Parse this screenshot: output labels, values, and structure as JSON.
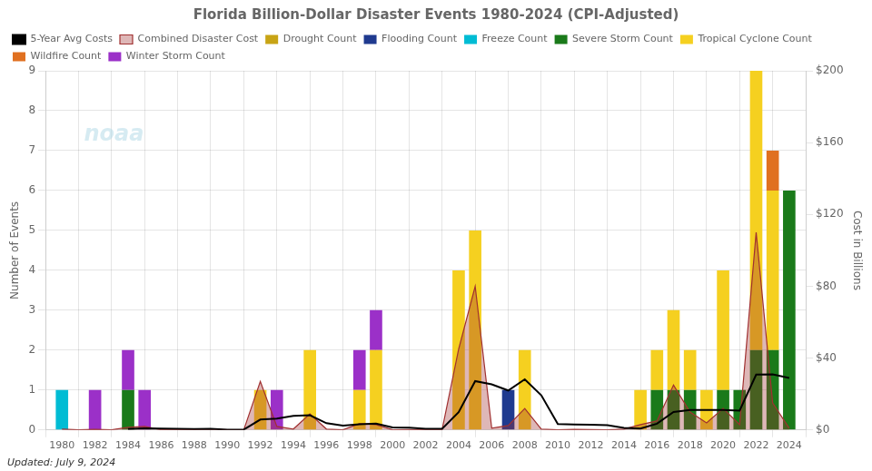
{
  "chart_data": {
    "type": "bar",
    "title": "Florida Billion-Dollar Disaster Events 1980-2024 (CPI-Adjusted)",
    "y_label": "Number of Events",
    "y2_label": "Cost in Billions",
    "annotations": [
      "Updated: July 9, 2024",
      "noaa"
    ],
    "x": [
      1980,
      1981,
      1982,
      1983,
      1984,
      1985,
      1986,
      1987,
      1988,
      1989,
      1990,
      1991,
      1992,
      1993,
      1994,
      1995,
      1996,
      1997,
      1998,
      1999,
      2000,
      2001,
      2002,
      2003,
      2004,
      2005,
      2006,
      2007,
      2008,
      2009,
      2010,
      2011,
      2012,
      2013,
      2014,
      2015,
      2016,
      2017,
      2018,
      2019,
      2020,
      2021,
      2022,
      2023,
      2024
    ],
    "xlim": [
      1979,
      2025
    ],
    "xticks": [
      1980,
      1982,
      1984,
      1986,
      1988,
      1990,
      1992,
      1994,
      1996,
      1998,
      2000,
      2002,
      2004,
      2006,
      2008,
      2010,
      2012,
      2014,
      2016,
      2018,
      2020,
      2022,
      2024
    ],
    "ylim": [
      0,
      9
    ],
    "yticks": [
      0,
      1,
      2,
      3,
      4,
      5,
      6,
      7,
      8,
      9
    ],
    "y2lim": [
      0,
      200
    ],
    "y2ticks": [
      {
        "value": 0,
        "label": "$0"
      },
      {
        "value": 40,
        "label": "$40"
      },
      {
        "value": 80,
        "label": "$80"
      },
      {
        "value": 120,
        "label": "$120"
      },
      {
        "value": 160,
        "label": "$160"
      },
      {
        "value": 200,
        "label": "$200"
      }
    ],
    "stacked": true,
    "grid": true,
    "legend": "upper left",
    "series": [
      {
        "name": "Drought Count",
        "color": "#c8a415",
        "values": [
          0,
          0,
          0,
          0,
          0,
          0,
          0,
          0,
          0,
          0,
          0,
          0,
          0,
          0,
          0,
          0,
          0,
          0,
          0,
          0,
          0,
          0,
          0,
          0,
          0,
          0,
          0,
          0,
          0,
          0,
          0,
          0,
          0,
          0,
          0,
          0,
          0,
          0,
          0,
          0,
          0,
          0,
          0,
          0,
          0
        ]
      },
      {
        "name": "Flooding Count",
        "color": "#1f3a8f",
        "values": [
          0,
          0,
          0,
          0,
          0,
          0,
          0,
          0,
          0,
          0,
          0,
          0,
          0,
          0,
          0,
          0,
          0,
          0,
          0,
          0,
          0,
          0,
          0,
          0,
          0,
          0,
          0,
          1,
          0,
          0,
          0,
          0,
          0,
          0,
          0,
          0,
          0,
          0,
          0,
          0,
          0,
          0,
          0,
          0,
          0
        ]
      },
      {
        "name": "Freeze Count",
        "color": "#00bcd4",
        "values": [
          1,
          0,
          0,
          0,
          0,
          0,
          0,
          0,
          0,
          0,
          0,
          0,
          0,
          0,
          0,
          0,
          0,
          0,
          0,
          0,
          0,
          0,
          0,
          0,
          0,
          0,
          0,
          0,
          0,
          0,
          0,
          0,
          0,
          0,
          0,
          0,
          0,
          0,
          0,
          0,
          0,
          0,
          0,
          0,
          0
        ]
      },
      {
        "name": "Severe Storm Count",
        "color": "#1a7a1a",
        "values": [
          0,
          0,
          0,
          0,
          1,
          0,
          0,
          0,
          0,
          0,
          0,
          0,
          0,
          0,
          0,
          0,
          0,
          0,
          0,
          0,
          0,
          0,
          0,
          0,
          0,
          0,
          0,
          0,
          0,
          0,
          0,
          0,
          0,
          0,
          0,
          0,
          1,
          1,
          1,
          0,
          1,
          1,
          2,
          2,
          6
        ]
      },
      {
        "name": "Tropical Cyclone Count",
        "color": "#f5d020",
        "values": [
          0,
          0,
          0,
          0,
          0,
          0,
          0,
          0,
          0,
          0,
          0,
          0,
          1,
          0,
          0,
          2,
          0,
          0,
          1,
          2,
          0,
          0,
          0,
          0,
          4,
          5,
          0,
          0,
          2,
          0,
          0,
          0,
          0,
          0,
          0,
          1,
          1,
          2,
          1,
          1,
          3,
          0,
          7,
          4,
          0
        ]
      },
      {
        "name": "Wildfire Count",
        "color": "#e07020",
        "values": [
          0,
          0,
          0,
          0,
          0,
          0,
          0,
          0,
          0,
          0,
          0,
          0,
          0,
          0,
          0,
          0,
          0,
          0,
          0,
          0,
          0,
          0,
          0,
          0,
          0,
          0,
          0,
          0,
          0,
          0,
          0,
          0,
          0,
          0,
          0,
          0,
          0,
          0,
          0,
          0,
          0,
          0,
          0,
          1,
          0
        ]
      },
      {
        "name": "Winter Storm Count",
        "color": "#9b30c8",
        "values": [
          0,
          0,
          1,
          0,
          1,
          1,
          0,
          0,
          0,
          0,
          0,
          0,
          0,
          1,
          0,
          0,
          0,
          0,
          1,
          1,
          0,
          0,
          0,
          0,
          0,
          0,
          0,
          0,
          0,
          0,
          0,
          0,
          0,
          0,
          0,
          0,
          0,
          0,
          0,
          0,
          0,
          0,
          0,
          0,
          0
        ]
      },
      {
        "name": "Combined Disaster Cost",
        "type": "area",
        "axis": "y2",
        "color": "#a03030",
        "values": [
          0.5,
          0.1,
          0.3,
          0.1,
          1.5,
          2.0,
          0.1,
          0.1,
          0.2,
          0.5,
          0.1,
          0.1,
          27.0,
          2.0,
          0.5,
          9.0,
          0.5,
          0.1,
          3.5,
          3.0,
          0.1,
          0.2,
          0.1,
          0.2,
          45.0,
          80.0,
          1.0,
          2.5,
          12.0,
          0.5,
          0.1,
          0.3,
          0.2,
          0.1,
          0.5,
          3.0,
          5.0,
          25.0,
          10.0,
          4.0,
          12.0,
          3.0,
          110.0,
          15.0,
          1.0
        ]
      },
      {
        "name": "5-Year Avg Costs",
        "type": "line",
        "axis": "y2",
        "color": "#000000",
        "values": [
          null,
          null,
          null,
          null,
          0.5,
          0.9,
          0.8,
          0.6,
          0.5,
          0.6,
          0.2,
          0.2,
          5.8,
          6.3,
          7.8,
          8.2,
          3.8,
          2.4,
          3.2,
          3.6,
          1.4,
          1.3,
          0.7,
          0.7,
          9.9,
          27.2,
          25.4,
          22.0,
          28.2,
          19.3,
          3.3,
          3.1,
          2.9,
          2.7,
          1.2,
          0.8,
          3.5,
          10.0,
          11.2,
          11.2,
          11.2,
          10.8,
          30.8,
          31.0,
          29.0
        ]
      }
    ]
  }
}
